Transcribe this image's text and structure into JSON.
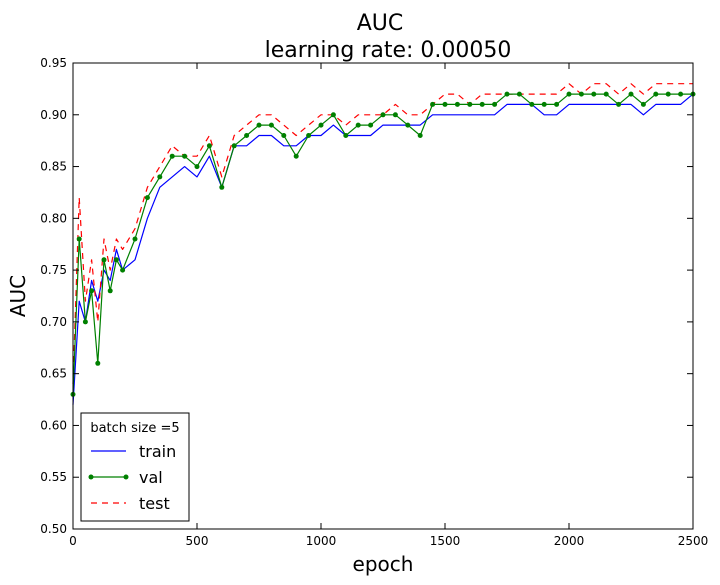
{
  "chart_data": {
    "type": "line",
    "title": "AUC",
    "subtitle": "learning rate: 0.00050",
    "xlabel": "epoch",
    "ylabel": "AUC",
    "xlim": [
      0,
      2500
    ],
    "ylim": [
      0.5,
      0.95
    ],
    "xticks": [
      "0",
      "500",
      "1000",
      "1500",
      "2000",
      "2500"
    ],
    "yticks": [
      "0.50",
      "0.55",
      "0.60",
      "0.65",
      "0.70",
      "0.75",
      "0.80",
      "0.85",
      "0.90",
      "0.95"
    ],
    "grid": false,
    "legend": {
      "title": "batch size =5",
      "position": "lower-left",
      "entries": [
        "train",
        "val",
        "test"
      ]
    },
    "series": [
      {
        "name": "train",
        "color": "#0000ff",
        "style": "solid",
        "x": [
          0,
          25,
          50,
          75,
          100,
          125,
          150,
          175,
          200,
          250,
          300,
          350,
          400,
          450,
          500,
          550,
          600,
          650,
          700,
          750,
          800,
          850,
          900,
          950,
          1000,
          1050,
          1100,
          1150,
          1200,
          1250,
          1300,
          1350,
          1400,
          1450,
          1500,
          1550,
          1600,
          1650,
          1700,
          1750,
          1800,
          1850,
          1900,
          1950,
          2000,
          2050,
          2100,
          2150,
          2200,
          2250,
          2300,
          2350,
          2400,
          2450,
          2500
        ],
        "y": [
          0.62,
          0.72,
          0.7,
          0.74,
          0.72,
          0.75,
          0.74,
          0.77,
          0.75,
          0.76,
          0.8,
          0.83,
          0.84,
          0.85,
          0.84,
          0.86,
          0.83,
          0.87,
          0.87,
          0.88,
          0.88,
          0.87,
          0.87,
          0.88,
          0.88,
          0.89,
          0.88,
          0.88,
          0.88,
          0.89,
          0.89,
          0.89,
          0.89,
          0.9,
          0.9,
          0.9,
          0.9,
          0.9,
          0.9,
          0.91,
          0.91,
          0.91,
          0.9,
          0.9,
          0.91,
          0.91,
          0.91,
          0.91,
          0.91,
          0.91,
          0.9,
          0.91,
          0.91,
          0.91,
          0.92
        ]
      },
      {
        "name": "val",
        "color": "#008000",
        "style": "solid-dot",
        "x": [
          0,
          25,
          50,
          75,
          100,
          125,
          150,
          175,
          200,
          250,
          300,
          350,
          400,
          450,
          500,
          550,
          600,
          650,
          700,
          750,
          800,
          850,
          900,
          950,
          1000,
          1050,
          1100,
          1150,
          1200,
          1250,
          1300,
          1350,
          1400,
          1450,
          1500,
          1550,
          1600,
          1650,
          1700,
          1750,
          1800,
          1850,
          1900,
          1950,
          2000,
          2050,
          2100,
          2150,
          2200,
          2250,
          2300,
          2350,
          2400,
          2450,
          2500
        ],
        "y": [
          0.63,
          0.78,
          0.7,
          0.73,
          0.66,
          0.76,
          0.73,
          0.76,
          0.75,
          0.78,
          0.82,
          0.84,
          0.86,
          0.86,
          0.85,
          0.87,
          0.83,
          0.87,
          0.88,
          0.89,
          0.89,
          0.88,
          0.86,
          0.88,
          0.89,
          0.9,
          0.88,
          0.89,
          0.89,
          0.9,
          0.9,
          0.89,
          0.88,
          0.91,
          0.91,
          0.91,
          0.91,
          0.91,
          0.91,
          0.92,
          0.92,
          0.91,
          0.91,
          0.91,
          0.92,
          0.92,
          0.92,
          0.92,
          0.91,
          0.92,
          0.91,
          0.92,
          0.92,
          0.92,
          0.92
        ]
      },
      {
        "name": "test",
        "color": "#ff0000",
        "style": "dashed",
        "x": [
          0,
          25,
          50,
          75,
          100,
          125,
          150,
          175,
          200,
          250,
          300,
          350,
          400,
          450,
          500,
          550,
          600,
          650,
          700,
          750,
          800,
          850,
          900,
          950,
          1000,
          1050,
          1100,
          1150,
          1200,
          1250,
          1300,
          1350,
          1400,
          1450,
          1500,
          1550,
          1600,
          1650,
          1700,
          1750,
          1800,
          1850,
          1900,
          1950,
          2000,
          2050,
          2100,
          2150,
          2200,
          2250,
          2300,
          2350,
          2400,
          2450,
          2500
        ],
        "y": [
          0.64,
          0.82,
          0.72,
          0.76,
          0.7,
          0.78,
          0.75,
          0.78,
          0.77,
          0.79,
          0.83,
          0.85,
          0.87,
          0.86,
          0.86,
          0.88,
          0.84,
          0.88,
          0.89,
          0.9,
          0.9,
          0.89,
          0.88,
          0.89,
          0.9,
          0.9,
          0.89,
          0.9,
          0.9,
          0.9,
          0.91,
          0.9,
          0.9,
          0.91,
          0.92,
          0.92,
          0.91,
          0.92,
          0.92,
          0.92,
          0.92,
          0.92,
          0.92,
          0.92,
          0.93,
          0.92,
          0.93,
          0.93,
          0.92,
          0.93,
          0.92,
          0.93,
          0.93,
          0.93,
          0.93
        ]
      }
    ]
  }
}
